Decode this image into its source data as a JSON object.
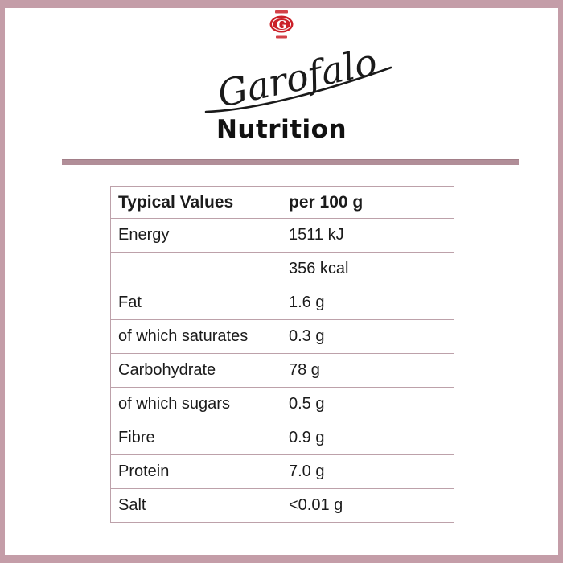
{
  "brand": {
    "name": "Garofalo",
    "emblem_letter": "G",
    "emblem_color": "#cb2028"
  },
  "page": {
    "title": "Nutrition",
    "frame_color": "#c49da8",
    "divider_color": "#b18e98"
  },
  "table": {
    "headers": [
      "Typical Values",
      "per 100 g"
    ],
    "rows": [
      [
        "Energy",
        "1511 kJ"
      ],
      [
        "",
        "356 kcal"
      ],
      [
        "Fat",
        "1.6 g"
      ],
      [
        "of which saturates",
        "0.3 g"
      ],
      [
        "Carbohydrate",
        "78 g"
      ],
      [
        "of which sugars",
        "0.5 g"
      ],
      [
        "Fibre",
        "0.9 g"
      ],
      [
        "Protein",
        "7.0 g"
      ],
      [
        "Salt",
        "<0.01 g"
      ]
    ]
  }
}
